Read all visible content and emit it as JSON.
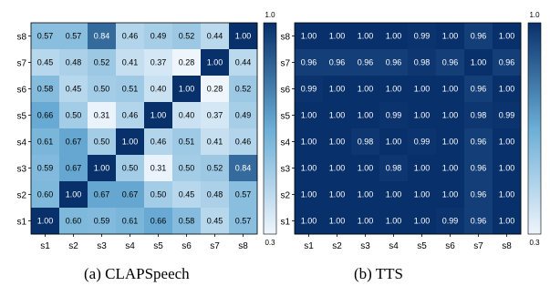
{
  "chart_data": [
    {
      "type": "heatmap",
      "caption": "(a) CLAPSpeech",
      "x_categories": [
        "s1",
        "s2",
        "s3",
        "s4",
        "s5",
        "s6",
        "s7",
        "s8"
      ],
      "y_categories": [
        "s8",
        "s7",
        "s6",
        "s5",
        "s4",
        "s3",
        "s2",
        "s1"
      ],
      "values": [
        [
          0.57,
          0.57,
          0.84,
          0.46,
          0.49,
          0.52,
          0.44,
          1.0
        ],
        [
          0.45,
          0.48,
          0.52,
          0.41,
          0.37,
          0.28,
          1.0,
          0.44
        ],
        [
          0.58,
          0.45,
          0.5,
          0.51,
          0.4,
          1.0,
          0.28,
          0.52
        ],
        [
          0.66,
          0.5,
          0.31,
          0.46,
          1.0,
          0.4,
          0.37,
          0.49
        ],
        [
          0.61,
          0.67,
          0.5,
          1.0,
          0.46,
          0.51,
          0.41,
          0.46
        ],
        [
          0.59,
          0.67,
          1.0,
          0.5,
          0.31,
          0.5,
          0.52,
          0.84
        ],
        [
          0.6,
          1.0,
          0.67,
          0.67,
          0.5,
          0.45,
          0.48,
          0.57
        ],
        [
          1.0,
          0.6,
          0.59,
          0.61,
          0.66,
          0.58,
          0.45,
          0.57
        ]
      ],
      "colorbar": {
        "min": 0.3,
        "max": 1.0,
        "min_label": "0.3",
        "max_label": "1.0"
      },
      "colors": {
        "low": "#eef5fc",
        "mid": "#6baed6",
        "high": "#08306b"
      }
    },
    {
      "type": "heatmap",
      "caption": "(b) TTS",
      "x_categories": [
        "s1",
        "s2",
        "s3",
        "s4",
        "s5",
        "s6",
        "s7",
        "s8"
      ],
      "y_categories": [
        "s8",
        "s7",
        "s6",
        "s5",
        "s4",
        "s3",
        "s2",
        "s1"
      ],
      "values": [
        [
          1.0,
          1.0,
          1.0,
          1.0,
          0.99,
          1.0,
          0.96,
          1.0
        ],
        [
          0.96,
          0.96,
          0.96,
          0.96,
          0.98,
          0.96,
          1.0,
          0.96
        ],
        [
          0.99,
          1.0,
          1.0,
          1.0,
          1.0,
          1.0,
          0.96,
          1.0
        ],
        [
          1.0,
          1.0,
          1.0,
          0.99,
          1.0,
          1.0,
          0.98,
          0.99
        ],
        [
          1.0,
          1.0,
          0.98,
          1.0,
          0.99,
          1.0,
          0.96,
          1.0
        ],
        [
          1.0,
          1.0,
          1.0,
          0.98,
          1.0,
          1.0,
          0.96,
          1.0
        ],
        [
          1.0,
          1.0,
          1.0,
          1.0,
          1.0,
          1.0,
          0.96,
          1.0
        ],
        [
          1.0,
          1.0,
          1.0,
          1.0,
          1.0,
          0.99,
          0.96,
          1.0
        ]
      ],
      "colorbar": {
        "min": 0.3,
        "max": 1.0,
        "min_label": "0.3",
        "max_label": "1.0"
      },
      "colors": {
        "low": "#eef5fc",
        "mid": "#6baed6",
        "high": "#08306b"
      }
    }
  ]
}
